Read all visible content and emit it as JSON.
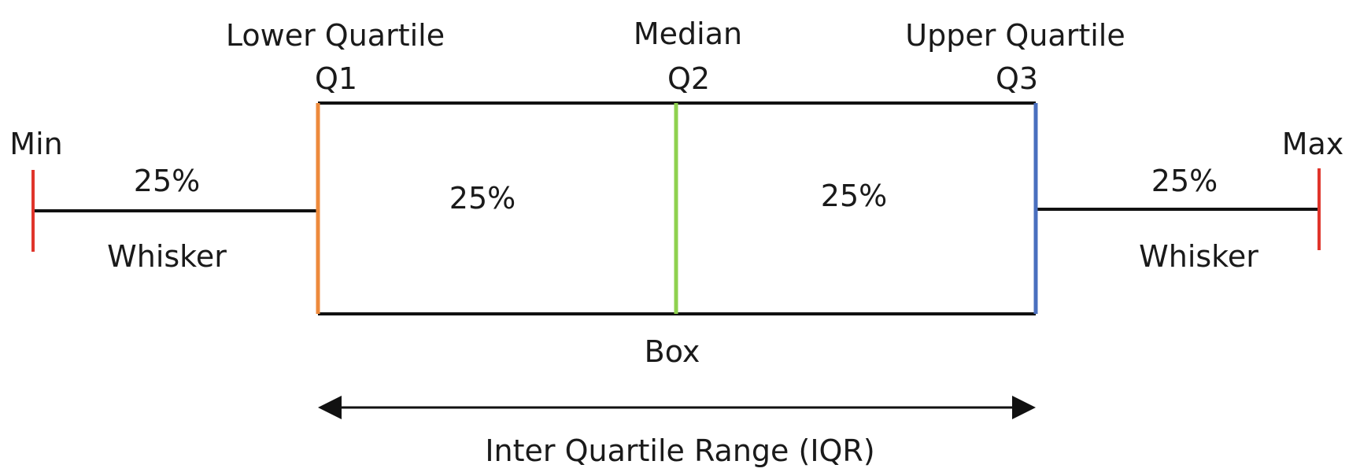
{
  "labels": {
    "lower_quartile": "Lower Quartile",
    "median": "Median",
    "upper_quartile": "Upper Quartile",
    "q1": "Q1",
    "q2": "Q2",
    "q3": "Q3",
    "min": "Min",
    "max": "Max",
    "left_whisker_pct": "25%",
    "left_box_pct": "25%",
    "right_box_pct": "25%",
    "right_whisker_pct": "25%",
    "left_whisker": "Whisker",
    "right_whisker": "Whisker",
    "box": "Box",
    "iqr": "Inter Quartile Range (IQR)"
  },
  "colors": {
    "min_max_caps": "#e0352b",
    "q1_line": "#ed8a3c",
    "median_line": "#8fd14f",
    "q3_line": "#4a6fbf",
    "lines": "#111111"
  }
}
